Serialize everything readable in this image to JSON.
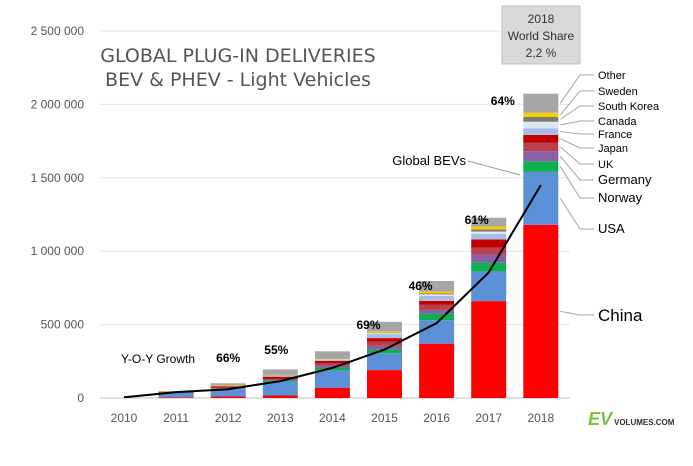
{
  "chart_data": {
    "type": "bar",
    "title_lines": [
      "GLOBAL PLUG-IN DELIVERIES",
      "BEV & PHEV - Light Vehicles"
    ],
    "xlabel": "",
    "ylabel": "",
    "ylim": [
      0,
      2500000
    ],
    "y_ticks": [
      0,
      500000,
      1000000,
      1500000,
      2000000,
      2500000
    ],
    "y_tick_labels": [
      "0",
      "500 000",
      "1 000 000",
      "1 500 000",
      "2 000 000",
      "2 500 000"
    ],
    "categories": [
      "2010",
      "2011",
      "2012",
      "2013",
      "2014",
      "2015",
      "2016",
      "2017",
      "2018"
    ],
    "series": [
      {
        "name": "China",
        "color": "#ff0000",
        "values": [
          0,
          5000,
          10000,
          17000,
          70000,
          190000,
          370000,
          660000,
          1180000
        ]
      },
      {
        "name": "USA",
        "color": "#5b8fd6",
        "values": [
          0,
          30000,
          50000,
          95000,
          120000,
          115000,
          160000,
          200000,
          360000
        ]
      },
      {
        "name": "Norway",
        "color": "#10ae52",
        "values": [
          0,
          2000,
          4000,
          8000,
          18000,
          26000,
          45000,
          62000,
          73000
        ]
      },
      {
        "name": "Germany",
        "color": "#8b5fa6",
        "values": [
          0,
          2000,
          3000,
          6000,
          13000,
          24000,
          25000,
          55000,
          68000
        ]
      },
      {
        "name": "UK",
        "color": "#b9404c",
        "values": [
          0,
          1000,
          3000,
          4000,
          15000,
          28000,
          37000,
          47000,
          59000
        ]
      },
      {
        "name": "Japan",
        "color": "#c00000",
        "values": [
          0,
          1000,
          10000,
          15000,
          16000,
          25000,
          25000,
          56000,
          52000
        ]
      },
      {
        "name": "France",
        "color": "#a8bde6",
        "values": [
          0,
          2000,
          5000,
          8000,
          10000,
          27000,
          33000,
          37000,
          46000
        ]
      },
      {
        "name": "Canada",
        "color": "#dfe7f5",
        "values": [
          0,
          1000,
          2000,
          3000,
          5000,
          7000,
          11000,
          17000,
          44000
        ]
      },
      {
        "name": "South Korea",
        "color": "#7a7a7a",
        "values": [
          0,
          500,
          500,
          1000,
          2000,
          3000,
          6000,
          14000,
          32000
        ]
      },
      {
        "name": "Sweden",
        "color": "#f6d000",
        "values": [
          0,
          500,
          1000,
          2000,
          3000,
          9000,
          13000,
          20000,
          29000
        ]
      },
      {
        "name": "Other",
        "color": "#a6a6a6",
        "values": [
          0,
          2000,
          12000,
          36000,
          46000,
          65000,
          72000,
          60000,
          130000
        ]
      }
    ],
    "line": {
      "name": "Global BEVs",
      "color": "#000000",
      "values": [
        5000,
        40000,
        60000,
        115000,
        205000,
        330000,
        510000,
        855000,
        1450000
      ]
    },
    "growth_labels": [
      {
        "category": "2012",
        "label": "66%"
      },
      {
        "category": "2013",
        "label": "55%"
      },
      {
        "category": "2015",
        "label": "69%"
      },
      {
        "category": "2016",
        "label": "46%"
      },
      {
        "category": "2017",
        "label": "61%"
      },
      {
        "category": "2018",
        "label": "64%"
      }
    ],
    "yoy_label": "Y-O-Y Growth",
    "world_share_box": [
      "2018",
      "World Share",
      "2,2 %"
    ],
    "grid": true,
    "legend": "right"
  },
  "logo": {
    "main": "EV",
    "sub": "VOLUMES.COM"
  }
}
